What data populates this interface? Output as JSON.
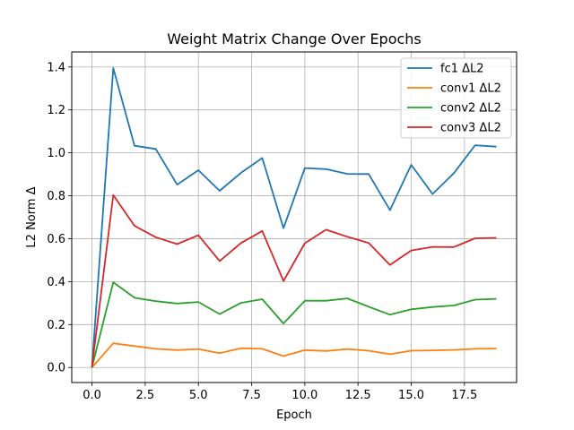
{
  "chart_data": {
    "type": "line",
    "title": "Weight Matrix Change Over Epochs",
    "xlabel": "Epoch",
    "ylabel": "L2 Norm Δ",
    "xlim": [
      -0.95,
      19.95
    ],
    "ylim": [
      -0.07,
      1.47
    ],
    "xticks": [
      0.0,
      2.5,
      5.0,
      7.5,
      10.0,
      12.5,
      15.0,
      17.5
    ],
    "xtick_labels": [
      "0.0",
      "2.5",
      "5.0",
      "7.5",
      "10.0",
      "12.5",
      "15.0",
      "17.5"
    ],
    "yticks": [
      0.0,
      0.2,
      0.4,
      0.6,
      0.8,
      1.0,
      1.2,
      1.4
    ],
    "ytick_labels": [
      "0.0",
      "0.2",
      "0.4",
      "0.6",
      "0.8",
      "1.0",
      "1.2",
      "1.4"
    ],
    "grid": true,
    "legend_position": "top-right",
    "x": [
      0,
      1,
      2,
      3,
      4,
      5,
      6,
      7,
      8,
      9,
      10,
      11,
      12,
      13,
      14,
      15,
      16,
      17,
      18,
      19
    ],
    "series": [
      {
        "name": "fc1 ΔL2",
        "color": "#1f77b4",
        "values": [
          0.0,
          1.395,
          1.033,
          1.018,
          0.852,
          0.919,
          0.823,
          0.907,
          0.976,
          0.649,
          0.929,
          0.924,
          0.902,
          0.901,
          0.733,
          0.944,
          0.808,
          0.905,
          1.035,
          1.029
        ]
      },
      {
        "name": "conv1 ΔL2",
        "color": "#ff7f0e",
        "values": [
          0.0,
          0.113,
          0.1,
          0.087,
          0.081,
          0.086,
          0.067,
          0.09,
          0.087,
          0.053,
          0.081,
          0.077,
          0.086,
          0.078,
          0.062,
          0.078,
          0.08,
          0.082,
          0.087,
          0.088
        ]
      },
      {
        "name": "conv2 ΔL2",
        "color": "#2ca02c",
        "values": [
          0.0,
          0.397,
          0.325,
          0.309,
          0.298,
          0.305,
          0.249,
          0.301,
          0.318,
          0.205,
          0.311,
          0.311,
          0.322,
          0.283,
          0.246,
          0.271,
          0.282,
          0.289,
          0.316,
          0.32
        ]
      },
      {
        "name": "conv3 ΔL2",
        "color": "#d62728",
        "values": [
          0.0,
          0.803,
          0.66,
          0.607,
          0.575,
          0.616,
          0.496,
          0.58,
          0.636,
          0.403,
          0.579,
          0.642,
          0.609,
          0.58,
          0.478,
          0.545,
          0.562,
          0.561,
          0.602,
          0.604
        ]
      }
    ]
  }
}
